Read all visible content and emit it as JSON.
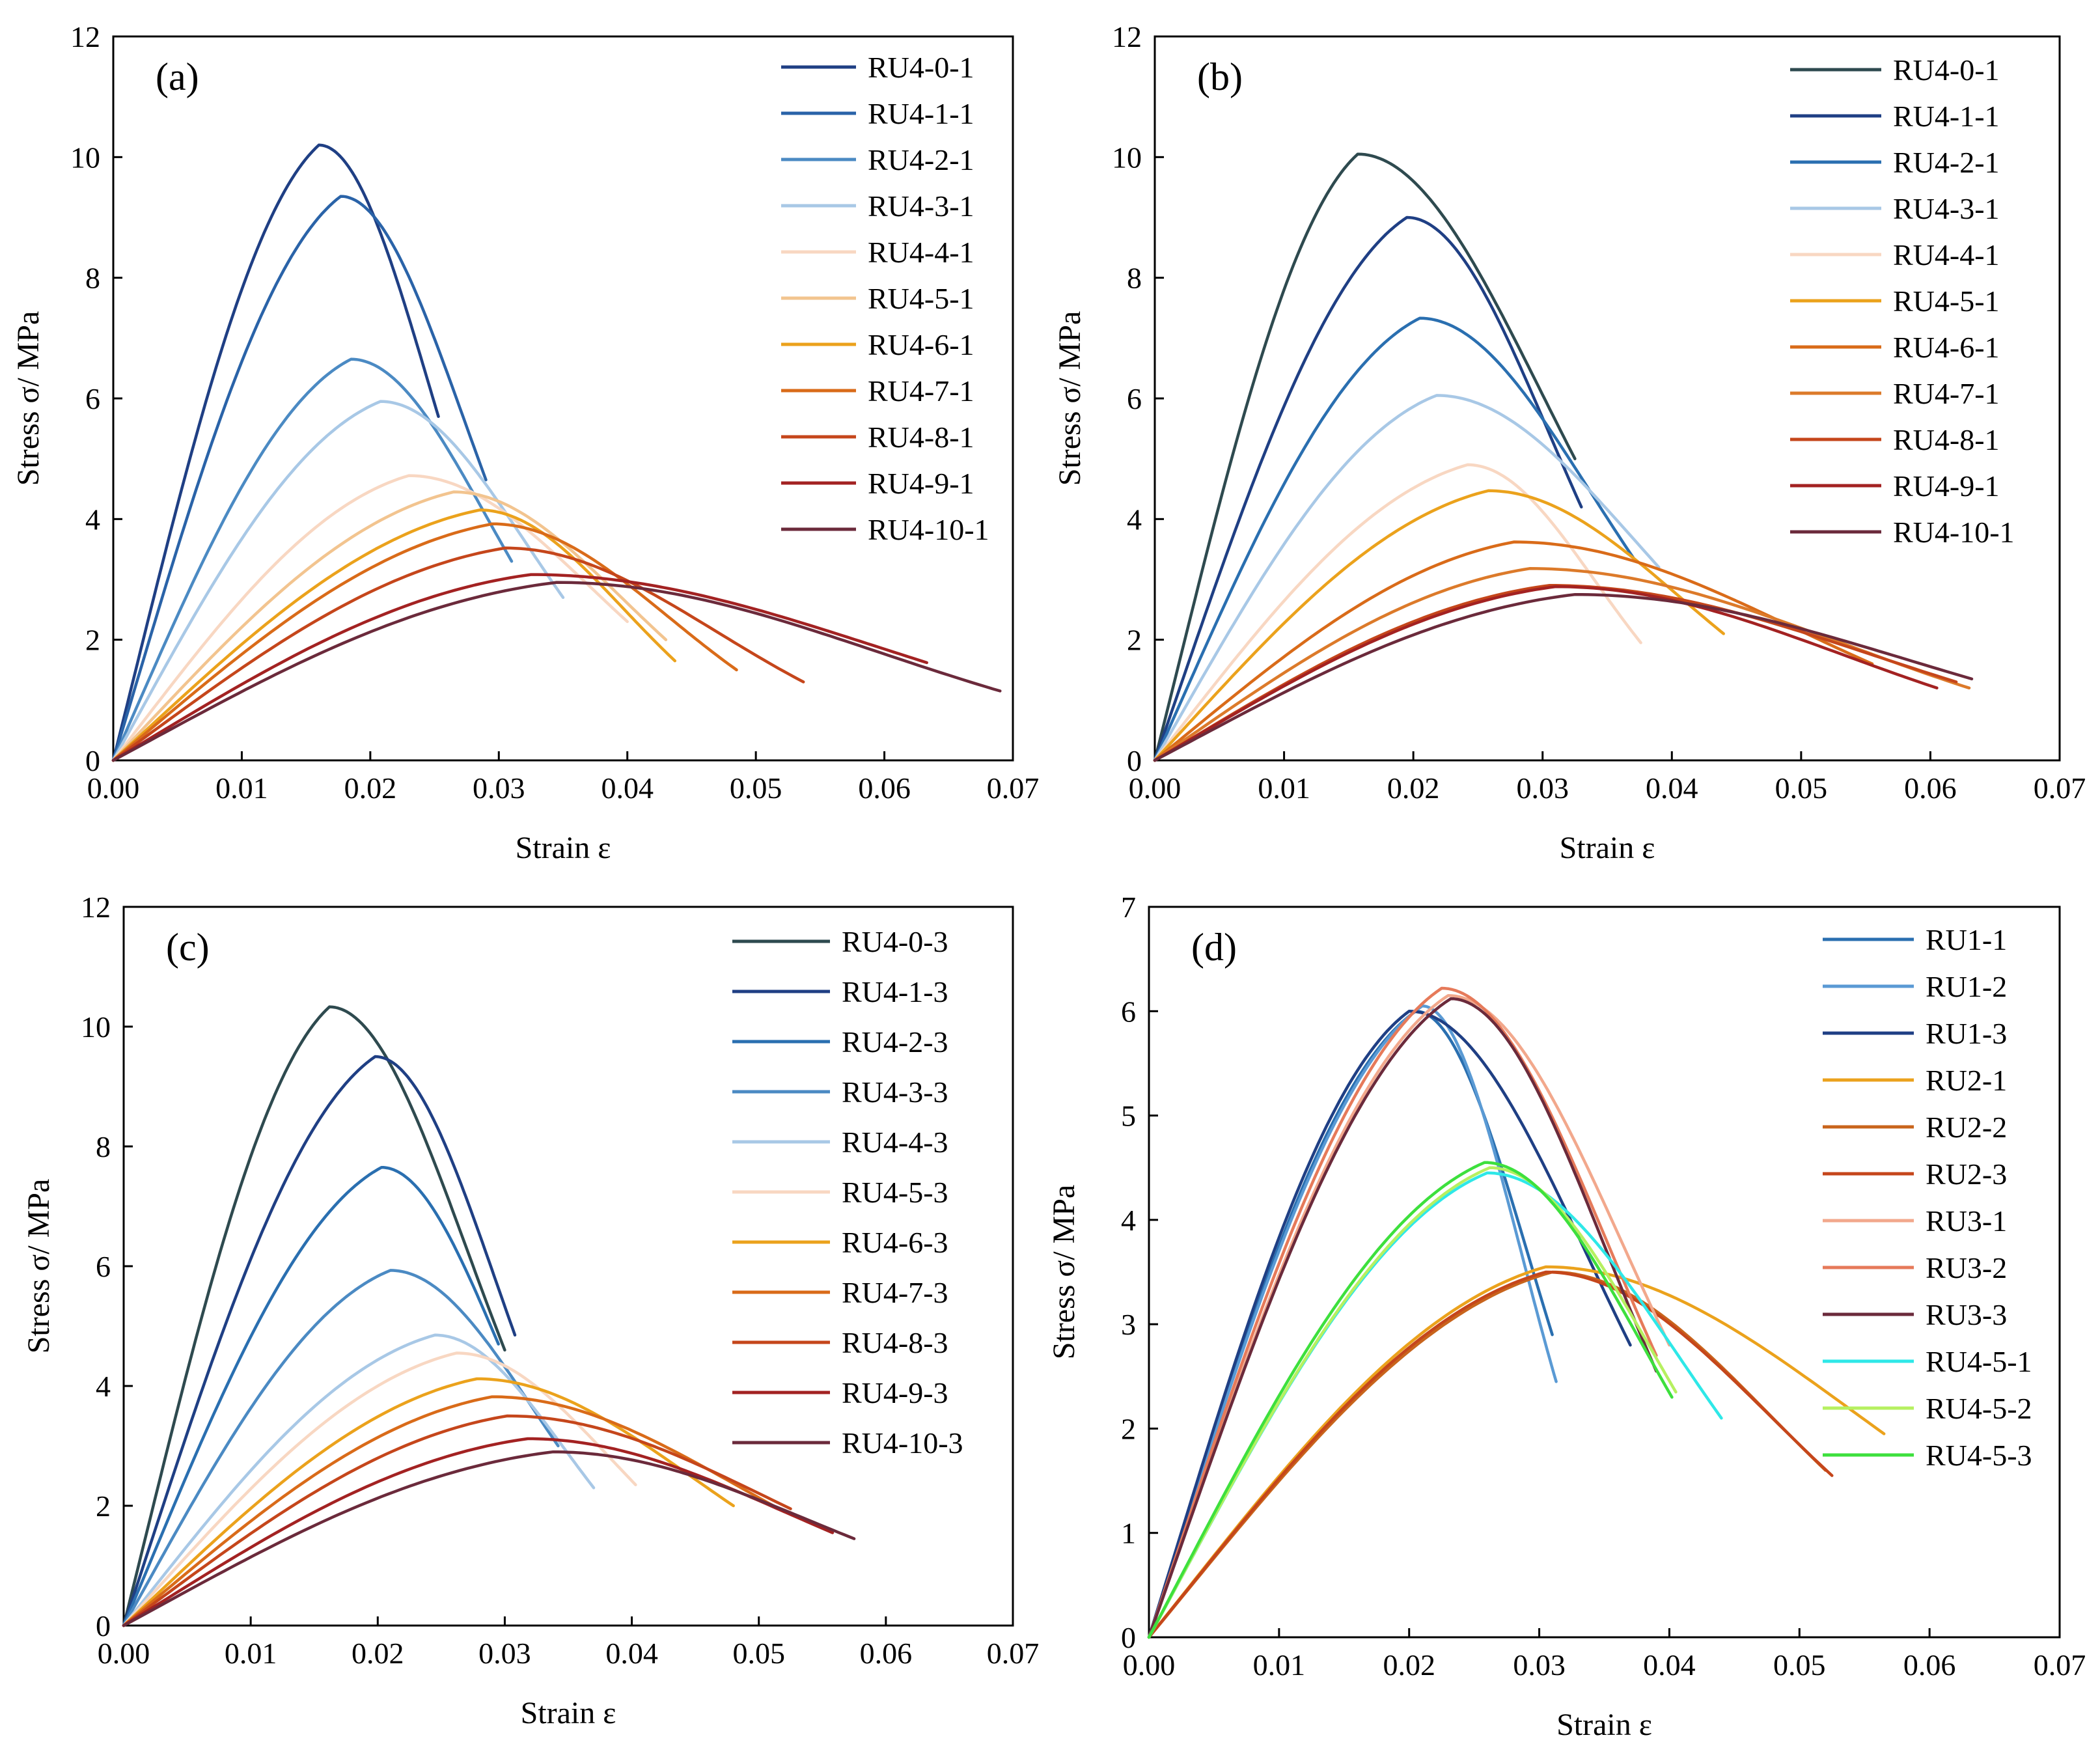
{
  "chart_data": [
    {
      "type": "line",
      "panel_label": "(a)",
      "xlabel": "Strain ε",
      "ylabel": "Stress σ/ MPa",
      "xlim": [
        0,
        0.07
      ],
      "ylim": [
        0,
        12
      ],
      "xticks": [
        "0.00",
        "0.01",
        "0.02",
        "0.03",
        "0.04",
        "0.05",
        "0.06",
        "0.07"
      ],
      "yticks": [
        "0",
        "2",
        "4",
        "6",
        "8",
        "10",
        "12"
      ],
      "legend_position": "top-right",
      "series": [
        {
          "name": "RU4-0-1",
          "color": "#1f3f84",
          "peak_strain": 0.016,
          "peak_stress": 10.2,
          "end_strain": 0.0253,
          "end_stress": 5.7
        },
        {
          "name": "RU4-1-1",
          "color": "#2a63a8",
          "peak_strain": 0.0177,
          "peak_stress": 9.35,
          "end_strain": 0.029,
          "end_stress": 4.65
        },
        {
          "name": "RU4-2-1",
          "color": "#4b8ac3",
          "peak_strain": 0.0185,
          "peak_stress": 6.65,
          "end_strain": 0.031,
          "end_stress": 3.3
        },
        {
          "name": "RU4-3-1",
          "color": "#a8c8e6",
          "peak_strain": 0.0208,
          "peak_stress": 5.95,
          "end_strain": 0.035,
          "end_stress": 2.7
        },
        {
          "name": "RU4-4-1",
          "color": "#f8d7c2",
          "peak_strain": 0.023,
          "peak_stress": 4.72,
          "end_strain": 0.04,
          "end_stress": 2.3
        },
        {
          "name": "RU4-5-1",
          "color": "#f2c48f",
          "peak_strain": 0.0265,
          "peak_stress": 4.45,
          "end_strain": 0.043,
          "end_stress": 2.0
        },
        {
          "name": "RU4-6-1",
          "color": "#eba21c",
          "peak_strain": 0.0285,
          "peak_stress": 4.15,
          "end_strain": 0.0437,
          "end_stress": 1.65
        },
        {
          "name": "RU4-7-1",
          "color": "#d96b19",
          "peak_strain": 0.0295,
          "peak_stress": 3.92,
          "end_strain": 0.0485,
          "end_stress": 1.5
        },
        {
          "name": "RU4-8-1",
          "color": "#c5461b",
          "peak_strain": 0.0305,
          "peak_stress": 3.52,
          "end_strain": 0.0537,
          "end_stress": 1.3
        },
        {
          "name": "RU4-9-1",
          "color": "#a32222",
          "peak_strain": 0.0325,
          "peak_stress": 3.08,
          "end_strain": 0.0633,
          "end_stress": 1.62
        },
        {
          "name": "RU4-10-1",
          "color": "#6b2a3b",
          "peak_strain": 0.0345,
          "peak_stress": 2.95,
          "end_strain": 0.069,
          "end_stress": 1.15
        }
      ]
    },
    {
      "type": "line",
      "panel_label": "(b)",
      "xlabel": "Strain ε",
      "ylabel": "Stress σ/ MPa",
      "xlim": [
        0,
        0.07
      ],
      "ylim": [
        0,
        12
      ],
      "xticks": [
        "0.00",
        "0.01",
        "0.02",
        "0.03",
        "0.04",
        "0.05",
        "0.06",
        "0.07"
      ],
      "yticks": [
        "0",
        "2",
        "4",
        "6",
        "8",
        "10",
        "12"
      ],
      "legend_position": "top-right",
      "series": [
        {
          "name": "RU4-0-1",
          "color": "#2e4a4f",
          "peak_strain": 0.0157,
          "peak_stress": 10.05,
          "end_strain": 0.0325,
          "end_stress": 5.0
        },
        {
          "name": "RU4-1-1",
          "color": "#1f3f84",
          "peak_strain": 0.0195,
          "peak_stress": 9.0,
          "end_strain": 0.033,
          "end_stress": 4.2
        },
        {
          "name": "RU4-2-1",
          "color": "#2a6fb0",
          "peak_strain": 0.0205,
          "peak_stress": 7.33,
          "end_strain": 0.0372,
          "end_stress": 3.3
        },
        {
          "name": "RU4-3-1",
          "color": "#a8c8e6",
          "peak_strain": 0.0218,
          "peak_stress": 6.05,
          "end_strain": 0.039,
          "end_stress": 3.2
        },
        {
          "name": "RU4-4-1",
          "color": "#f8d7c2",
          "peak_strain": 0.0242,
          "peak_stress": 4.9,
          "end_strain": 0.0376,
          "end_stress": 1.95
        },
        {
          "name": "RU4-5-1",
          "color": "#eba21c",
          "peak_strain": 0.0258,
          "peak_stress": 4.47,
          "end_strain": 0.044,
          "end_stress": 2.1
        },
        {
          "name": "RU4-6-1",
          "color": "#d96b19",
          "peak_strain": 0.0278,
          "peak_stress": 3.62,
          "end_strain": 0.0555,
          "end_stress": 1.6
        },
        {
          "name": "RU4-7-1",
          "color": "#dc7a2a",
          "peak_strain": 0.029,
          "peak_stress": 3.18,
          "end_strain": 0.063,
          "end_stress": 1.2
        },
        {
          "name": "RU4-8-1",
          "color": "#c5461b",
          "peak_strain": 0.0305,
          "peak_stress": 2.9,
          "end_strain": 0.062,
          "end_stress": 1.3
        },
        {
          "name": "RU4-9-1",
          "color": "#a32222",
          "peak_strain": 0.031,
          "peak_stress": 2.88,
          "end_strain": 0.0605,
          "end_stress": 1.2
        },
        {
          "name": "RU4-10-1",
          "color": "#6b2a3b",
          "peak_strain": 0.0325,
          "peak_stress": 2.75,
          "end_strain": 0.0632,
          "end_stress": 1.35
        }
      ]
    },
    {
      "type": "line",
      "panel_label": "(c)",
      "xlabel": "Strain ε",
      "ylabel": "Stress σ/ MPa",
      "xlim": [
        0,
        0.07
      ],
      "ylim": [
        0,
        12
      ],
      "xticks": [
        "0.00",
        "0.01",
        "0.02",
        "0.03",
        "0.04",
        "0.05",
        "0.06",
        "0.07"
      ],
      "yticks": [
        "0",
        "2",
        "4",
        "6",
        "8",
        "10",
        "12"
      ],
      "legend_position": "top-right",
      "series": [
        {
          "name": "RU4-0-3",
          "color": "#2e4a4f",
          "peak_strain": 0.0162,
          "peak_stress": 10.33,
          "end_strain": 0.03,
          "end_stress": 4.6
        },
        {
          "name": "RU4-1-3",
          "color": "#1f3f84",
          "peak_strain": 0.0198,
          "peak_stress": 9.5,
          "end_strain": 0.0308,
          "end_stress": 4.85
        },
        {
          "name": "RU4-2-3",
          "color": "#2a6fb0",
          "peak_strain": 0.0203,
          "peak_stress": 7.65,
          "end_strain": 0.0295,
          "end_stress": 4.7
        },
        {
          "name": "RU4-3-3",
          "color": "#4b8ac3",
          "peak_strain": 0.021,
          "peak_stress": 5.93,
          "end_strain": 0.0342,
          "end_stress": 3.0
        },
        {
          "name": "RU4-4-3",
          "color": "#a8c8e6",
          "peak_strain": 0.0245,
          "peak_stress": 4.85,
          "end_strain": 0.037,
          "end_stress": 2.3
        },
        {
          "name": "RU4-5-3",
          "color": "#f8d7c2",
          "peak_strain": 0.0262,
          "peak_stress": 4.55,
          "end_strain": 0.0403,
          "end_stress": 2.35
        },
        {
          "name": "RU4-6-3",
          "color": "#eba21c",
          "peak_strain": 0.0278,
          "peak_stress": 4.12,
          "end_strain": 0.048,
          "end_stress": 2.0
        },
        {
          "name": "RU4-7-3",
          "color": "#d96b19",
          "peak_strain": 0.029,
          "peak_stress": 3.82,
          "end_strain": 0.052,
          "end_stress": 1.9
        },
        {
          "name": "RU4-8-3",
          "color": "#c5461b",
          "peak_strain": 0.0302,
          "peak_stress": 3.5,
          "end_strain": 0.0525,
          "end_stress": 1.95
        },
        {
          "name": "RU4-9-3",
          "color": "#a32222",
          "peak_strain": 0.0318,
          "peak_stress": 3.12,
          "end_strain": 0.0558,
          "end_stress": 1.55
        },
        {
          "name": "RU4-10-3",
          "color": "#6b2a3b",
          "peak_strain": 0.0338,
          "peak_stress": 2.9,
          "end_strain": 0.0575,
          "end_stress": 1.45
        }
      ]
    },
    {
      "type": "line",
      "panel_label": "(d)",
      "xlabel": "Strain ε",
      "ylabel": "Stress σ/ MPa",
      "xlim": [
        0,
        0.07
      ],
      "ylim": [
        0,
        7
      ],
      "xticks": [
        "0.00",
        "0.01",
        "0.02",
        "0.03",
        "0.04",
        "0.05",
        "0.06",
        "0.07"
      ],
      "yticks": [
        "0",
        "1",
        "2",
        "3",
        "4",
        "5",
        "6",
        "7"
      ],
      "legend_position": "top-right",
      "series": [
        {
          "name": "RU1-1",
          "color": "#2a6fb0",
          "peak_strain": 0.0205,
          "peak_stress": 6.0,
          "end_strain": 0.031,
          "end_stress": 2.9
        },
        {
          "name": "RU1-2",
          "color": "#5a9ad4",
          "peak_strain": 0.021,
          "peak_stress": 6.05,
          "end_strain": 0.0313,
          "end_stress": 2.45
        },
        {
          "name": "RU1-3",
          "color": "#1f3f84",
          "peak_strain": 0.02,
          "peak_stress": 6.0,
          "end_strain": 0.037,
          "end_stress": 2.8
        },
        {
          "name": "RU2-1",
          "color": "#eba21c",
          "peak_strain": 0.0305,
          "peak_stress": 3.55,
          "end_strain": 0.0565,
          "end_stress": 1.95
        },
        {
          "name": "RU2-2",
          "color": "#c8641c",
          "peak_strain": 0.031,
          "peak_stress": 3.5,
          "end_strain": 0.052,
          "end_stress": 1.6
        },
        {
          "name": "RU2-3",
          "color": "#c5461b",
          "peak_strain": 0.0305,
          "peak_stress": 3.5,
          "end_strain": 0.0525,
          "end_stress": 1.55
        },
        {
          "name": "RU3-1",
          "color": "#f2a88c",
          "peak_strain": 0.023,
          "peak_stress": 6.15,
          "end_strain": 0.04,
          "end_stress": 2.8
        },
        {
          "name": "RU3-2",
          "color": "#e67a5a",
          "peak_strain": 0.0225,
          "peak_stress": 6.22,
          "end_strain": 0.039,
          "end_stress": 2.7
        },
        {
          "name": "RU3-3",
          "color": "#6b2a3b",
          "peak_strain": 0.0232,
          "peak_stress": 6.12,
          "end_strain": 0.039,
          "end_stress": 2.55
        },
        {
          "name": "RU4-5-1",
          "color": "#2ee8e8",
          "peak_strain": 0.026,
          "peak_stress": 4.45,
          "end_strain": 0.044,
          "end_stress": 2.1
        },
        {
          "name": "RU4-5-2",
          "color": "#b6f060",
          "peak_strain": 0.0262,
          "peak_stress": 4.5,
          "end_strain": 0.0405,
          "end_stress": 2.35
        },
        {
          "name": "RU4-5-3",
          "color": "#3de03d",
          "peak_strain": 0.0258,
          "peak_stress": 4.55,
          "end_strain": 0.0402,
          "end_stress": 2.3
        }
      ]
    }
  ]
}
